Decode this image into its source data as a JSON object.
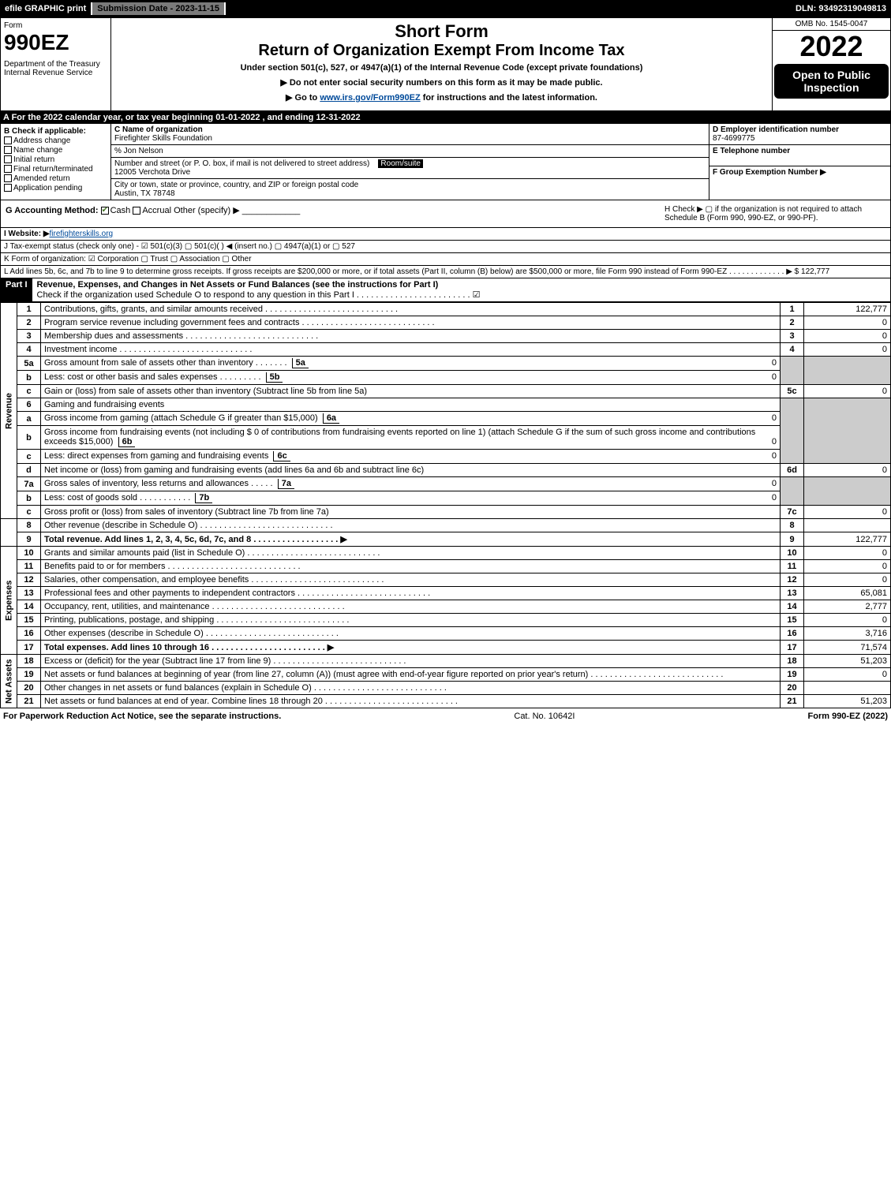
{
  "topbar": {
    "efile": "efile GRAPHIC print",
    "submission": "Submission Date - 2023-11-15",
    "dln": "DLN: 93492319049813"
  },
  "header": {
    "form": "Form",
    "form_num": "990EZ",
    "dept": "Department of the Treasury\nInternal Revenue Service",
    "short": "Short Form",
    "title": "Return of Organization Exempt From Income Tax",
    "under": "Under section 501(c), 527, or 4947(a)(1) of the Internal Revenue Code (except private foundations)",
    "note1": "▶ Do not enter social security numbers on this form as it may be made public.",
    "note2": "▶ Go to www.irs.gov/Form990EZ for instructions and the latest information.",
    "link": "www.irs.gov/Form990EZ",
    "omb": "OMB No. 1545-0047",
    "year": "2022",
    "open": "Open to Public Inspection"
  },
  "rowA": "A  For the 2022 calendar year, or tax year beginning 01-01-2022  , and ending 12-31-2022",
  "colB": {
    "title": "B  Check if applicable:",
    "items": [
      "Address change",
      "Name change",
      "Initial return",
      "Final return/terminated",
      "Amended return",
      "Application pending"
    ]
  },
  "colC": {
    "name_lbl": "C Name of organization",
    "name": "Firefighter Skills Foundation",
    "care": "% Jon Nelson",
    "street_lbl": "Number and street (or P. O. box, if mail is not delivered to street address)",
    "room_lbl": "Room/suite",
    "street": "12005 Verchota Drive",
    "city_lbl": "City or town, state or province, country, and ZIP or foreign postal code",
    "city": "Austin, TX  78748"
  },
  "colD": {
    "d_lbl": "D Employer identification number",
    "ein": "87-4699775",
    "e_lbl": "E Telephone number",
    "f_lbl": "F Group Exemption Number   ▶"
  },
  "rowG": {
    "g": "G Accounting Method:",
    "cash": "Cash",
    "accrual": "Accrual",
    "other": "Other (specify) ▶",
    "h": "H  Check ▶  ▢  if the organization is not required to attach Schedule B (Form 990, 990-EZ, or 990-PF).",
    "i_lbl": "I Website: ▶",
    "website": "firefighterskills.org",
    "j": "J Tax-exempt status (check only one) -  ☑ 501(c)(3)  ▢ 501(c)(  ) ◀ (insert no.)  ▢ 4947(a)(1) or  ▢ 527",
    "k": "K Form of organization:   ☑ Corporation   ▢ Trust   ▢ Association   ▢ Other",
    "l": "L Add lines 5b, 6c, and 7b to line 9 to determine gross receipts. If gross receipts are $200,000 or more, or if total assets (Part II, column (B) below) are $500,000 or more, file Form 990 instead of Form 990-EZ  . . . . . . . . . . . . . ▶ $ 122,777"
  },
  "part1": {
    "label": "Part I",
    "title": "Revenue, Expenses, and Changes in Net Assets or Fund Balances (see the instructions for Part I)",
    "check": "Check if the organization used Schedule O to respond to any question in this Part I . . . . . . . . . . . . . . . . . . . . . . . . ☑"
  },
  "sidelabels": {
    "rev": "Revenue",
    "exp": "Expenses",
    "na": "Net Assets"
  },
  "lines": {
    "l1": {
      "n": "1",
      "d": "Contributions, gifts, grants, and similar amounts received",
      "c": "1",
      "a": "122,777"
    },
    "l2": {
      "n": "2",
      "d": "Program service revenue including government fees and contracts",
      "c": "2",
      "a": "0"
    },
    "l3": {
      "n": "3",
      "d": "Membership dues and assessments",
      "c": "3",
      "a": "0"
    },
    "l4": {
      "n": "4",
      "d": "Investment income",
      "c": "4",
      "a": "0"
    },
    "l5a": {
      "n": "5a",
      "d": "Gross amount from sale of assets other than inventory",
      "sc": "5a",
      "sa": "0"
    },
    "l5b": {
      "n": "b",
      "d": "Less: cost or other basis and sales expenses",
      "sc": "5b",
      "sa": "0"
    },
    "l5c": {
      "n": "c",
      "d": "Gain or (loss) from sale of assets other than inventory (Subtract line 5b from line 5a)",
      "c": "5c",
      "a": "0"
    },
    "l6": {
      "n": "6",
      "d": "Gaming and fundraising events"
    },
    "l6a": {
      "n": "a",
      "d": "Gross income from gaming (attach Schedule G if greater than $15,000)",
      "sc": "6a",
      "sa": "0"
    },
    "l6b": {
      "n": "b",
      "d": "Gross income from fundraising events (not including $ 0 of contributions from fundraising events reported on line 1) (attach Schedule G if the sum of such gross income and contributions exceeds $15,000)",
      "sc": "6b",
      "sa": "0"
    },
    "l6c": {
      "n": "c",
      "d": "Less: direct expenses from gaming and fundraising events",
      "sc": "6c",
      "sa": "0"
    },
    "l6d": {
      "n": "d",
      "d": "Net income or (loss) from gaming and fundraising events (add lines 6a and 6b and subtract line 6c)",
      "c": "6d",
      "a": "0"
    },
    "l7a": {
      "n": "7a",
      "d": "Gross sales of inventory, less returns and allowances",
      "sc": "7a",
      "sa": "0"
    },
    "l7b": {
      "n": "b",
      "d": "Less: cost of goods sold",
      "sc": "7b",
      "sa": "0"
    },
    "l7c": {
      "n": "c",
      "d": "Gross profit or (loss) from sales of inventory (Subtract line 7b from line 7a)",
      "c": "7c",
      "a": "0"
    },
    "l8": {
      "n": "8",
      "d": "Other revenue (describe in Schedule O)",
      "c": "8",
      "a": ""
    },
    "l9": {
      "n": "9",
      "d": "Total revenue. Add lines 1, 2, 3, 4, 5c, 6d, 7c, and 8   . . . . . . . . . . . . . . . . . . ▶",
      "c": "9",
      "a": "122,777",
      "bold": true
    },
    "l10": {
      "n": "10",
      "d": "Grants and similar amounts paid (list in Schedule O)",
      "c": "10",
      "a": "0"
    },
    "l11": {
      "n": "11",
      "d": "Benefits paid to or for members",
      "c": "11",
      "a": "0"
    },
    "l12": {
      "n": "12",
      "d": "Salaries, other compensation, and employee benefits",
      "c": "12",
      "a": "0"
    },
    "l13": {
      "n": "13",
      "d": "Professional fees and other payments to independent contractors",
      "c": "13",
      "a": "65,081"
    },
    "l14": {
      "n": "14",
      "d": "Occupancy, rent, utilities, and maintenance",
      "c": "14",
      "a": "2,777"
    },
    "l15": {
      "n": "15",
      "d": "Printing, publications, postage, and shipping",
      "c": "15",
      "a": "0"
    },
    "l16": {
      "n": "16",
      "d": "Other expenses (describe in Schedule O)",
      "c": "16",
      "a": "3,716"
    },
    "l17": {
      "n": "17",
      "d": "Total expenses. Add lines 10 through 16   . . . . . . . . . . . . . . . . . . . . . . . . ▶",
      "c": "17",
      "a": "71,574",
      "bold": true
    },
    "l18": {
      "n": "18",
      "d": "Excess or (deficit) for the year (Subtract line 17 from line 9)",
      "c": "18",
      "a": "51,203"
    },
    "l19": {
      "n": "19",
      "d": "Net assets or fund balances at beginning of year (from line 27, column (A)) (must agree with end-of-year figure reported on prior year's return)",
      "c": "19",
      "a": "0"
    },
    "l20": {
      "n": "20",
      "d": "Other changes in net assets or fund balances (explain in Schedule O)",
      "c": "20",
      "a": ""
    },
    "l21": {
      "n": "21",
      "d": "Net assets or fund balances at end of year. Combine lines 18 through 20",
      "c": "21",
      "a": "51,203"
    }
  },
  "footer": {
    "left": "For Paperwork Reduction Act Notice, see the separate instructions.",
    "mid": "Cat. No. 10642I",
    "right": "Form 990-EZ (2022)"
  }
}
